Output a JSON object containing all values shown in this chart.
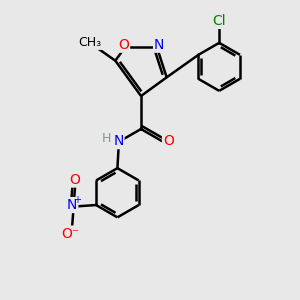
{
  "bg_color": "#e8e8e8",
  "bond_color": "#000000",
  "bond_width": 1.8,
  "atom_colors": {
    "O": "#ff0000",
    "N": "#0000ff",
    "Cl": "#008000",
    "C": "#000000",
    "H": "#7a9a9a"
  },
  "font_size": 10
}
